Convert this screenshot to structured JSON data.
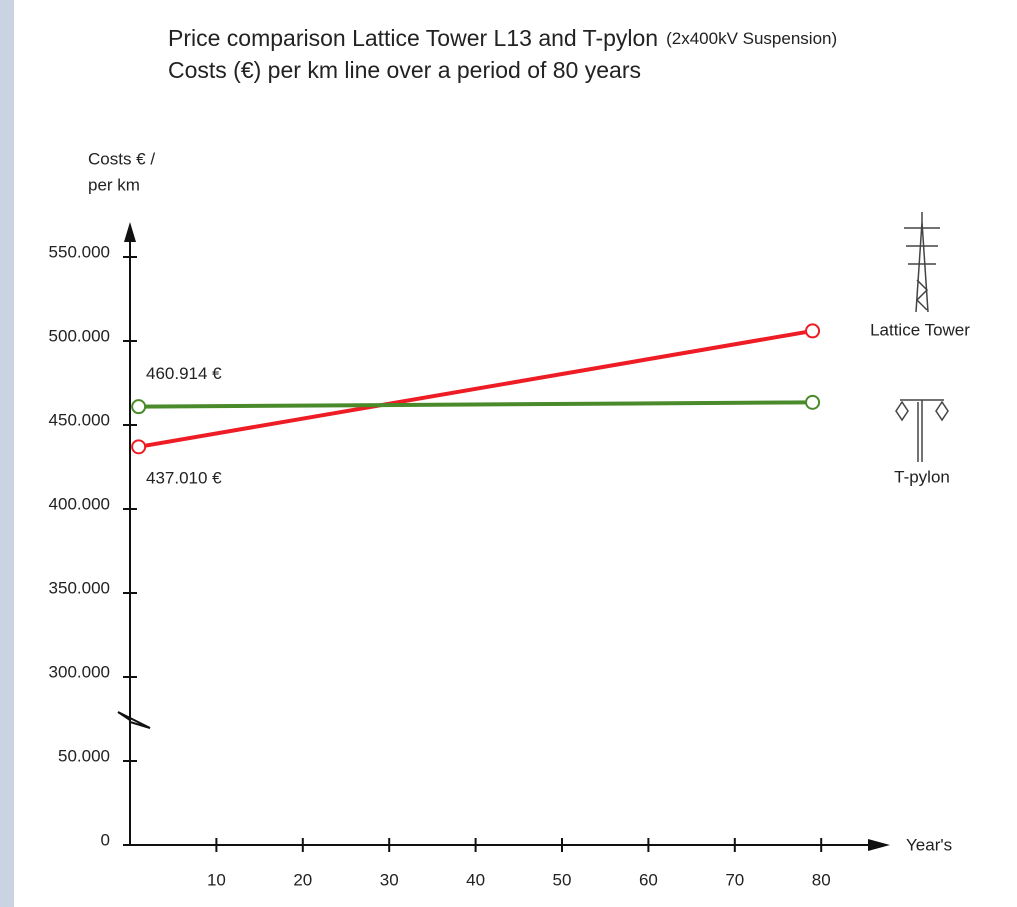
{
  "chart_data": {
    "type": "line",
    "title": "Price comparison Lattice Tower L13 and T-pylon",
    "title_note": "(2x400kV Suspension)",
    "subtitle": "Costs (€) per km line over a period of 80 years",
    "y_label": [
      "Costs € /",
      "per km"
    ],
    "x_label": "Year's",
    "x": [
      1,
      79
    ],
    "series": [
      {
        "name": "Lattice Tower",
        "color": "#ee1c24",
        "values": [
          437010,
          506000
        ],
        "value_labels": [
          null,
          null
        ]
      },
      {
        "name": "T-pylon",
        "color": "#4a8a2a",
        "values": [
          460914,
          463500
        ],
        "value_labels": [
          "460.914 €",
          null
        ]
      }
    ],
    "start_labels": [
      {
        "series": 0,
        "label": "437.010 €"
      }
    ],
    "xlim": [
      0,
      85
    ],
    "xticks": [
      10,
      20,
      30,
      40,
      50,
      60,
      70,
      80
    ],
    "ylim": [
      0,
      550000
    ],
    "ybreak": [
      50000,
      300000
    ],
    "yticks": [
      {
        "value": 0,
        "label": "0"
      },
      {
        "value": 50000,
        "label": "50.000"
      },
      {
        "value": 300000,
        "label": "300.000"
      },
      {
        "value": 350000,
        "label": "350.000"
      },
      {
        "value": 400000,
        "label": "400.000"
      },
      {
        "value": 450000,
        "label": "450.000"
      },
      {
        "value": 500000,
        "label": "500.000"
      },
      {
        "value": 550000,
        "label": "550.000"
      }
    ],
    "grid": false
  }
}
